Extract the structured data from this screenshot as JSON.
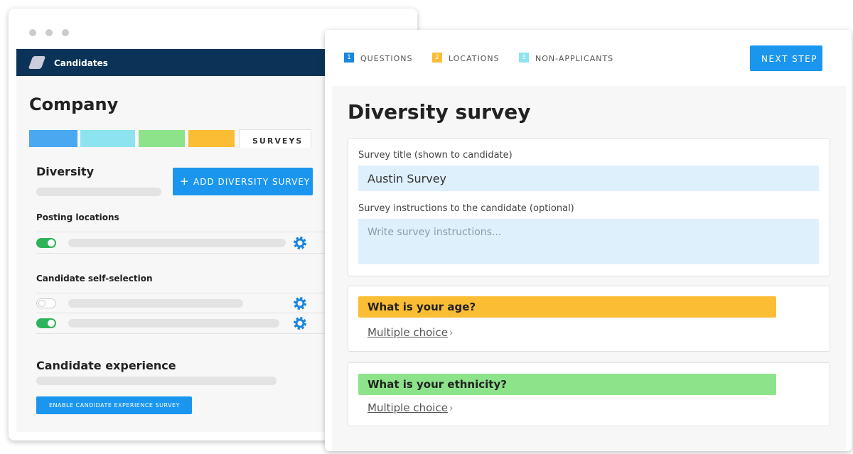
{
  "left": {
    "nav_title": "Candidates",
    "heading": "Company",
    "tab": "SURVEYS",
    "diversity": {
      "title": "Diversity",
      "button": "ADD DIVERSITY SURVEY"
    },
    "posting_locations": "Posting locations",
    "self_selection": "Candidate self-selection",
    "experience": {
      "title": "Candidate experience",
      "button": "ENABLE CANDIDATE EXPERIENCE SURVEY"
    }
  },
  "right": {
    "steps": [
      {
        "number": 1,
        "label": "QUESTIONS"
      },
      {
        "number": 2,
        "label": "LOCATIONS"
      },
      {
        "number": 3,
        "label": "NON-APPLICANTS"
      }
    ],
    "next_button": "NEXT STEP",
    "title": "Diversity survey",
    "fields": [
      {
        "label": "Survey title (shown to candidate)",
        "value": "Austin Survey"
      },
      {
        "label": "Survey instructions to the candidate (optional)",
        "placeholder": "Write survey instructions..."
      }
    ],
    "questions": [
      {
        "text": "What is your age?",
        "type": "Multiple choice"
      },
      {
        "text": "What is your ethnicity?",
        "type": "Multiple choice"
      }
    ]
  }
}
